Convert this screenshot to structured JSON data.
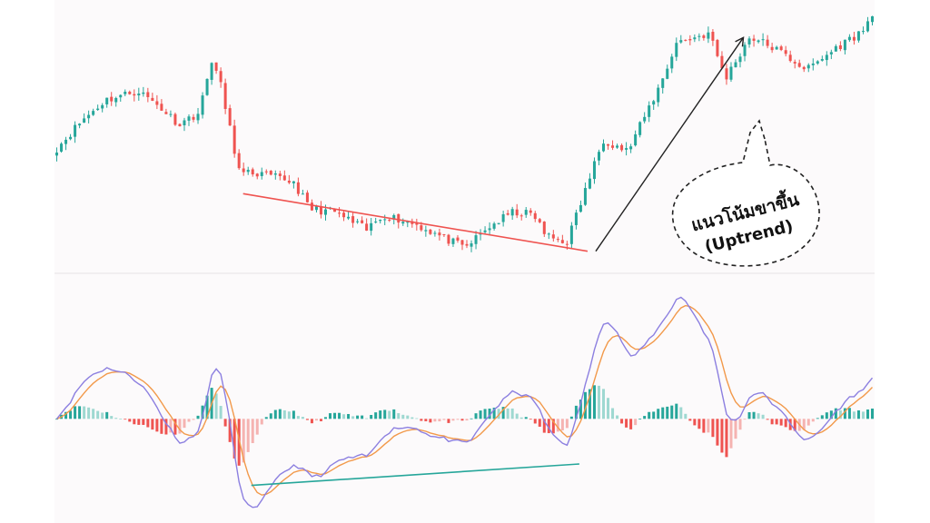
{
  "annotation": {
    "line1": "แนวโน้มขาขึ้น",
    "line2": "(Uptrend)"
  },
  "colors": {
    "background": "#fcfafb",
    "bull": "#26a69a",
    "bear": "#ef5350",
    "macd_line": "#8c7fe0",
    "signal_line": "#f2994a",
    "trend_price": "#ef5350",
    "trend_macd": "#26a69a",
    "arrow": "#222222",
    "separator": "#e6e3e5"
  },
  "chart_data": [
    {
      "type": "candlestick",
      "name": "price",
      "trend_lines": [
        {
          "from": [
            0.23,
            -0.6
          ],
          "to": [
            0.65,
            -1.55
          ],
          "color": "trend_price"
        }
      ],
      "arrow": {
        "from": [
          0.66,
          -1.55
        ],
        "to": [
          0.84,
          1.98
        ]
      },
      "waypoints": [
        [
          0.0,
          0.15
        ],
        [
          0.03,
          0.6
        ],
        [
          0.06,
          0.95
        ],
        [
          0.1,
          1.1
        ],
        [
          0.125,
          0.85
        ],
        [
          0.15,
          0.55
        ],
        [
          0.175,
          0.75
        ],
        [
          0.19,
          1.62
        ],
        [
          0.2,
          1.25
        ],
        [
          0.215,
          0.3
        ],
        [
          0.225,
          -0.3
        ],
        [
          0.24,
          -0.25
        ],
        [
          0.29,
          -0.4
        ],
        [
          0.31,
          -0.85
        ],
        [
          0.34,
          -0.9
        ],
        [
          0.38,
          -1.2
        ],
        [
          0.4,
          -0.95
        ],
        [
          0.44,
          -1.1
        ],
        [
          0.5,
          -1.5
        ],
        [
          0.53,
          -1.15
        ],
        [
          0.56,
          -0.9
        ],
        [
          0.585,
          -0.95
        ],
        [
          0.6,
          -1.3
        ],
        [
          0.625,
          -1.4
        ],
        [
          0.64,
          -0.85
        ],
        [
          0.67,
          0.3
        ],
        [
          0.7,
          0.1
        ],
        [
          0.74,
          1.2
        ],
        [
          0.76,
          1.9
        ],
        [
          0.8,
          2.05
        ],
        [
          0.82,
          1.3
        ],
        [
          0.85,
          2.0
        ],
        [
          0.88,
          1.8
        ],
        [
          0.92,
          1.45
        ],
        [
          0.96,
          1.85
        ],
        [
          0.99,
          2.1
        ],
        [
          1.0,
          2.4
        ]
      ]
    },
    {
      "type": "macd",
      "name": "macd",
      "series": [
        {
          "key": "macd_line",
          "kind": "line"
        },
        {
          "key": "signal_line",
          "kind": "line"
        },
        {
          "key": "histogram",
          "kind": "bar"
        }
      ],
      "trend_lines": [
        {
          "from": [
            0.24,
            -1.15
          ],
          "to": [
            0.64,
            -0.78
          ],
          "color": "trend_macd"
        }
      ]
    }
  ]
}
